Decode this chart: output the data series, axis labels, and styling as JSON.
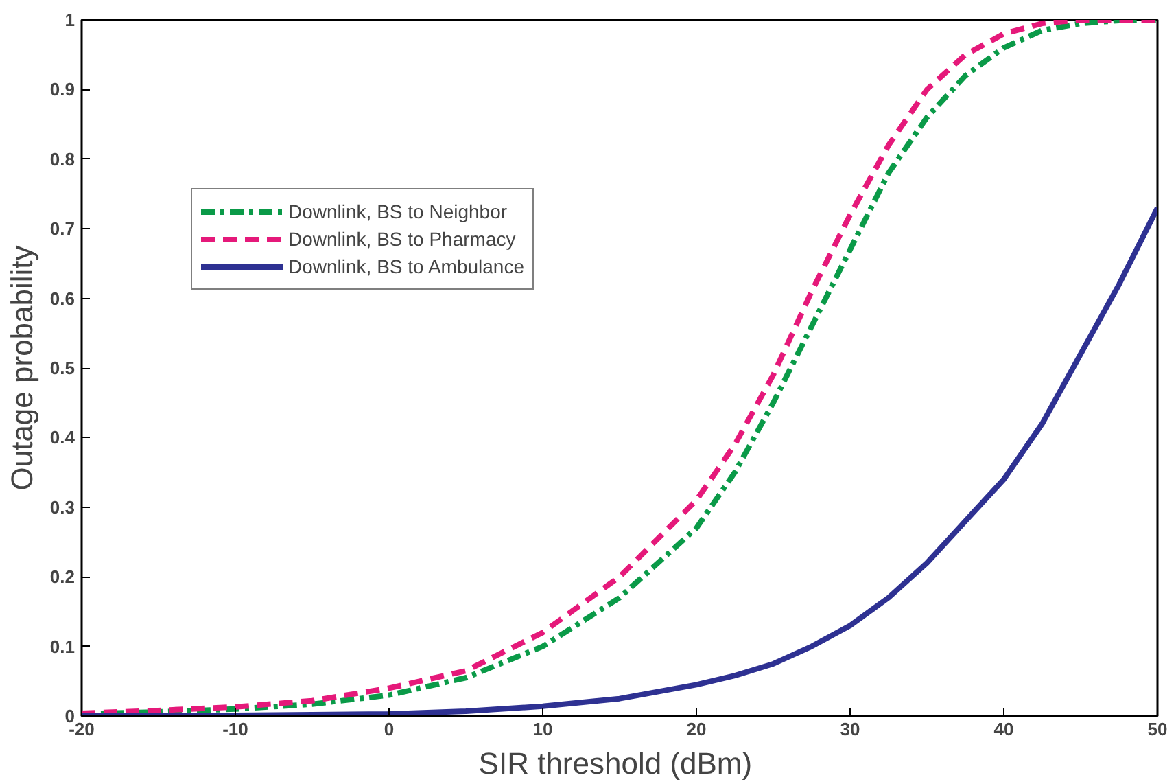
{
  "chart_data": {
    "type": "line",
    "xlabel": "SIR threshold  (dBm)",
    "ylabel": "Outage probability",
    "x": [
      -20,
      -15,
      -10,
      -5,
      0,
      5,
      10,
      15,
      20,
      22.5,
      25,
      27.5,
      30,
      32.5,
      35,
      37.5,
      40,
      42.5,
      45,
      47.5,
      50
    ],
    "series": [
      {
        "name": "Downlink, BS to Neighbor",
        "color": "#0a9a48",
        "line_style": "dashdot",
        "values": [
          0.003,
          0.006,
          0.01,
          0.017,
          0.03,
          0.055,
          0.1,
          0.17,
          0.27,
          0.35,
          0.45,
          0.56,
          0.67,
          0.78,
          0.86,
          0.92,
          0.96,
          0.985,
          0.995,
          0.999,
          1
        ]
      },
      {
        "name": "Downlink, BS to Pharmacy",
        "color": "#e5197a",
        "line_style": "dashed",
        "values": [
          0.004,
          0.008,
          0.013,
          0.022,
          0.04,
          0.065,
          0.12,
          0.2,
          0.31,
          0.39,
          0.49,
          0.61,
          0.72,
          0.82,
          0.9,
          0.95,
          0.98,
          0.995,
          1,
          1,
          1
        ]
      },
      {
        "name": "Downlink, BS to Ambulance",
        "color": "#2e3192",
        "line_style": "solid",
        "values": [
          0,
          0.001,
          0.001,
          0.002,
          0.003,
          0.007,
          0.014,
          0.025,
          0.045,
          0.058,
          0.075,
          0.1,
          0.13,
          0.17,
          0.22,
          0.28,
          0.34,
          0.42,
          0.52,
          0.62,
          0.73
        ]
      }
    ],
    "xlim": [
      -20,
      50
    ],
    "ylim": [
      0,
      1
    ],
    "xticks": [
      -20,
      -10,
      0,
      10,
      20,
      30,
      40,
      50
    ],
    "yticks": [
      0,
      0.1,
      0.2,
      0.3,
      0.4,
      0.5,
      0.6,
      0.7,
      0.8,
      0.9,
      1
    ],
    "grid": false,
    "legend": "top left",
    "marker": "none"
  }
}
